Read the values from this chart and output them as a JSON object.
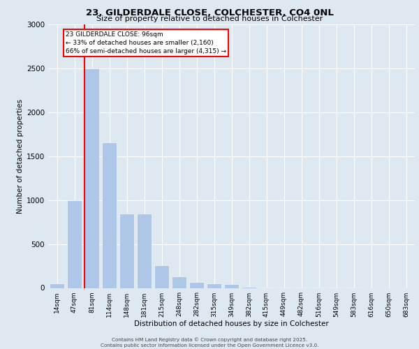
{
  "title_line1": "23, GILDERDALE CLOSE, COLCHESTER, CO4 0NL",
  "title_line2": "Size of property relative to detached houses in Colchester",
  "xlabel": "Distribution of detached houses by size in Colchester",
  "ylabel": "Number of detached properties",
  "annotation_line1": "23 GILDERDALE CLOSE: 96sqm",
  "annotation_line2": "← 33% of detached houses are smaller (2,160)",
  "annotation_line3": "66% of semi-detached houses are larger (4,315) →",
  "footer_line1": "Contains HM Land Registry data © Crown copyright and database right 2025.",
  "footer_line2": "Contains public sector information licensed under the Open Government Licence v3.0.",
  "bar_color": "#aec6e8",
  "vline_color": "red",
  "vline_x_index": 2,
  "background_color": "#dde8f0",
  "grid_color": "white",
  "categories": [
    "14sqm",
    "47sqm",
    "81sqm",
    "114sqm",
    "148sqm",
    "181sqm",
    "215sqm",
    "248sqm",
    "282sqm",
    "315sqm",
    "349sqm",
    "382sqm",
    "415sqm",
    "449sqm",
    "482sqm",
    "516sqm",
    "549sqm",
    "583sqm",
    "616sqm",
    "650sqm",
    "683sqm"
  ],
  "values": [
    50,
    1000,
    2500,
    1660,
    850,
    850,
    255,
    130,
    70,
    50,
    40,
    15,
    5,
    3,
    2,
    1,
    1,
    1,
    0,
    0,
    0
  ],
  "ylim": [
    0,
    3000
  ],
  "yticks": [
    0,
    500,
    1000,
    1500,
    2000,
    2500,
    3000
  ]
}
